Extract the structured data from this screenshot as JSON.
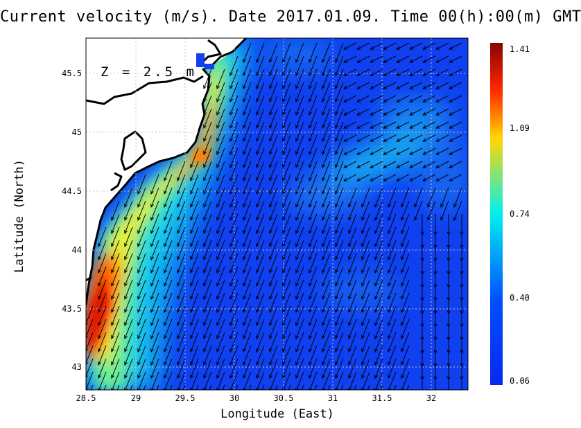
{
  "title": "Current velocity (m/s). Date 2017.01.09. Time 00(h):00(m) GMT",
  "depth_label": "Z = 2.5 m",
  "xlabel": "Longitude (East)",
  "ylabel": "Latitude (North)",
  "x_ticks": [
    "28.5",
    "29",
    "29.5",
    "30",
    "30.5",
    "31",
    "31.5",
    "32"
  ],
  "y_ticks": [
    "43",
    "43.5",
    "44",
    "44.5",
    "45",
    "45.5"
  ],
  "colorbar": {
    "ticks": [
      "1.41",
      "1.09",
      "0.74",
      "0.40",
      "0.06"
    ],
    "colors": [
      "#8b0000",
      "#ff2a00",
      "#ffd800",
      "#00f0f0",
      "#0050ff",
      "#0828f0"
    ]
  },
  "chart_data": {
    "type": "heatmap",
    "variable": "current velocity",
    "unit": "m/s",
    "date": "2017.01.09",
    "time": "00(h):00(m) GMT",
    "depth": "2.5 m",
    "xlim": [
      28.5,
      32.4
    ],
    "ylim": [
      42.82,
      45.8
    ],
    "color_range": [
      0.06,
      1.41
    ],
    "features": [
      {
        "lon": 28.62,
        "lat": 43.38,
        "speed": 1.35
      },
      {
        "lon": 28.72,
        "lat": 43.9,
        "speed": 1.2
      },
      {
        "lon": 28.95,
        "lat": 44.15,
        "speed": 0.95
      },
      {
        "lon": 29.5,
        "lat": 44.55,
        "speed": 1.1
      },
      {
        "lon": 29.8,
        "lat": 44.85,
        "speed": 0.95
      },
      {
        "lon": 29.85,
        "lat": 45.3,
        "speed": 0.7
      },
      {
        "lon": 28.85,
        "lat": 42.95,
        "speed": 0.85
      },
      {
        "lon": 31.5,
        "lat": 44.85,
        "speed": 0.6
      },
      {
        "lon": 31.0,
        "lat": 43.8,
        "speed": 0.2
      }
    ]
  }
}
